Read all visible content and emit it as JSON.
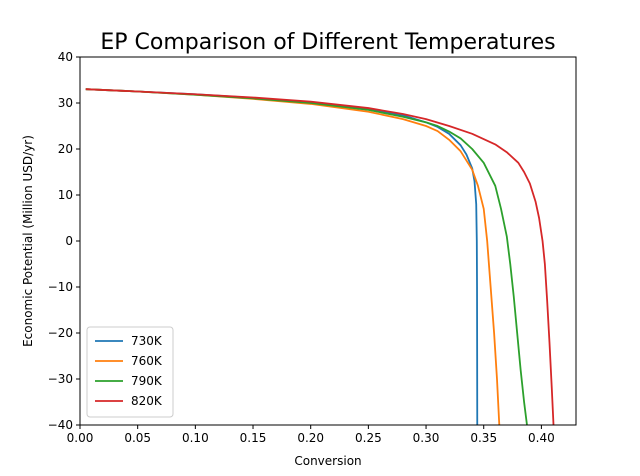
{
  "chart_data": {
    "type": "line",
    "title": "EP Comparison of Different Temperatures",
    "xlabel": "Conversion",
    "ylabel": "Economic Potential (Million USD/yr)",
    "xlim": [
      0.0,
      0.43
    ],
    "ylim": [
      -40,
      40
    ],
    "xticks": [
      "0.00",
      "0.05",
      "0.10",
      "0.15",
      "0.20",
      "0.25",
      "0.30",
      "0.35",
      "0.40"
    ],
    "yticks": [
      "−40",
      "−30",
      "−20",
      "−10",
      "0",
      "10",
      "20",
      "30",
      "40"
    ],
    "grid": false,
    "legend_position": "lower left",
    "series": [
      {
        "name": "730K",
        "color": "#1f77b4",
        "points": [
          [
            0.005,
            33.0
          ],
          [
            0.05,
            32.5
          ],
          [
            0.1,
            31.9
          ],
          [
            0.15,
            31.1
          ],
          [
            0.2,
            30.1
          ],
          [
            0.25,
            28.7
          ],
          [
            0.28,
            27.3
          ],
          [
            0.3,
            25.8
          ],
          [
            0.31,
            24.8
          ],
          [
            0.32,
            23.3
          ],
          [
            0.33,
            20.8
          ],
          [
            0.335,
            18.8
          ],
          [
            0.34,
            15.8
          ],
          [
            0.342,
            13.0
          ],
          [
            0.3435,
            8.0
          ],
          [
            0.344,
            0.0
          ],
          [
            0.3442,
            -10.0
          ],
          [
            0.3443,
            -25.0
          ],
          [
            0.3444,
            -40.0
          ]
        ]
      },
      {
        "name": "760K",
        "color": "#ff7f0e",
        "points": [
          [
            0.005,
            33.0
          ],
          [
            0.05,
            32.5
          ],
          [
            0.1,
            31.8
          ],
          [
            0.15,
            30.9
          ],
          [
            0.2,
            29.8
          ],
          [
            0.25,
            28.1
          ],
          [
            0.28,
            26.5
          ],
          [
            0.3,
            25.0
          ],
          [
            0.31,
            23.9
          ],
          [
            0.32,
            22.0
          ],
          [
            0.33,
            19.5
          ],
          [
            0.34,
            15.5
          ],
          [
            0.345,
            12.0
          ],
          [
            0.35,
            7.0
          ],
          [
            0.353,
            0.0
          ],
          [
            0.356,
            -10.0
          ],
          [
            0.359,
            -20.0
          ],
          [
            0.3615,
            -30.0
          ],
          [
            0.3635,
            -40.0
          ]
        ]
      },
      {
        "name": "790K",
        "color": "#2ca02c",
        "points": [
          [
            0.005,
            33.0
          ],
          [
            0.05,
            32.5
          ],
          [
            0.1,
            31.8
          ],
          [
            0.15,
            31.0
          ],
          [
            0.2,
            30.0
          ],
          [
            0.25,
            28.5
          ],
          [
            0.28,
            27.0
          ],
          [
            0.3,
            25.8
          ],
          [
            0.31,
            25.0
          ],
          [
            0.32,
            23.8
          ],
          [
            0.33,
            22.3
          ],
          [
            0.34,
            20.0
          ],
          [
            0.35,
            17.0
          ],
          [
            0.36,
            12.0
          ],
          [
            0.365,
            7.0
          ],
          [
            0.37,
            1.0
          ],
          [
            0.373,
            -5.0
          ],
          [
            0.376,
            -12.0
          ],
          [
            0.379,
            -20.0
          ],
          [
            0.382,
            -28.0
          ],
          [
            0.385,
            -35.0
          ],
          [
            0.3875,
            -40.0
          ]
        ]
      },
      {
        "name": "820K",
        "color": "#d62728",
        "points": [
          [
            0.005,
            33.0
          ],
          [
            0.05,
            32.5
          ],
          [
            0.1,
            31.9
          ],
          [
            0.15,
            31.2
          ],
          [
            0.2,
            30.3
          ],
          [
            0.25,
            28.9
          ],
          [
            0.28,
            27.6
          ],
          [
            0.3,
            26.5
          ],
          [
            0.32,
            25.0
          ],
          [
            0.34,
            23.3
          ],
          [
            0.36,
            21.0
          ],
          [
            0.37,
            19.3
          ],
          [
            0.38,
            17.0
          ],
          [
            0.385,
            15.0
          ],
          [
            0.39,
            12.5
          ],
          [
            0.395,
            8.5
          ],
          [
            0.398,
            5.0
          ],
          [
            0.401,
            0.0
          ],
          [
            0.403,
            -5.0
          ],
          [
            0.405,
            -13.0
          ],
          [
            0.407,
            -22.0
          ],
          [
            0.409,
            -32.0
          ],
          [
            0.4105,
            -40.0
          ]
        ]
      }
    ]
  }
}
